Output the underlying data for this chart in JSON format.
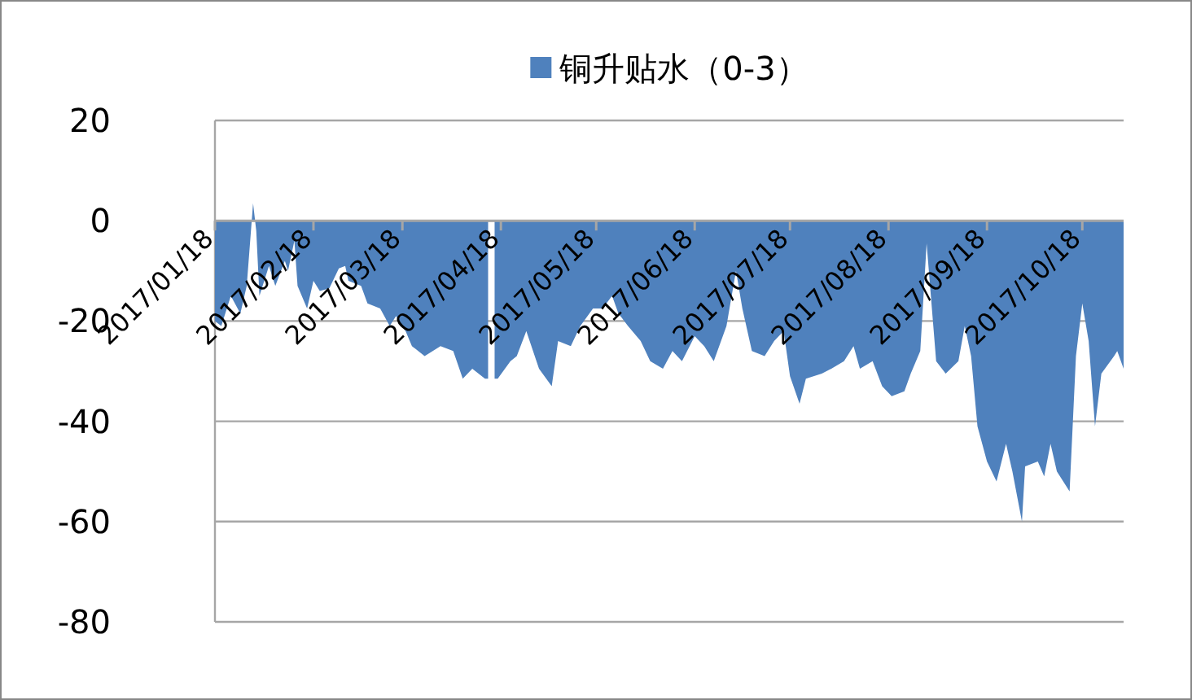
{
  "chart_data": {
    "type": "area",
    "legend": "top",
    "grid": "y",
    "xlim": [
      "2017-01-18",
      "2017-10-31"
    ],
    "xticks": [
      {
        "value": "2017-01-18",
        "label": "2017/01/18"
      },
      {
        "value": "2017-02-18",
        "label": "2017/02/18"
      },
      {
        "value": "2017-03-18",
        "label": "2017/03/18"
      },
      {
        "value": "2017-04-18",
        "label": "2017/04/18"
      },
      {
        "value": "2017-05-18",
        "label": "2017/05/18"
      },
      {
        "value": "2017-06-18",
        "label": "2017/06/18"
      },
      {
        "value": "2017-07-18",
        "label": "2017/07/18"
      },
      {
        "value": "2017-08-18",
        "label": "2017/08/18"
      },
      {
        "value": "2017-09-18",
        "label": "2017/09/18"
      },
      {
        "value": "2017-10-18",
        "label": "2017/10/18"
      }
    ],
    "ylim": [
      -80,
      20
    ],
    "yticks": [
      -80,
      -60,
      -40,
      -20,
      0,
      20
    ],
    "x": [
      "2017-01-18",
      "2017-01-20",
      "2017-01-23",
      "2017-01-26",
      "2017-01-28",
      "2017-01-30",
      "2017-01-31",
      "2017-02-01",
      "2017-02-04",
      "2017-02-06",
      "2017-02-09",
      "2017-02-10",
      "2017-02-12",
      "2017-02-13",
      "2017-02-16",
      "2017-02-18",
      "2017-02-20",
      "2017-02-23",
      "2017-02-26",
      "2017-02-28",
      "2017-03-01",
      "2017-03-05",
      "2017-03-07",
      "2017-03-11",
      "2017-03-14",
      "2017-03-16",
      "2017-03-19",
      "2017-03-21",
      "2017-03-25",
      "2017-03-30",
      "2017-04-03",
      "2017-04-06",
      "2017-04-09",
      "2017-04-13",
      "2017-04-15",
      "2017-04-17",
      "2017-04-21",
      "2017-04-23",
      "2017-04-26",
      "2017-04-30",
      "2017-05-04",
      "2017-05-06",
      "2017-05-10",
      "2017-05-13",
      "2017-05-17",
      "2017-05-20",
      "2017-05-23",
      "2017-05-25",
      "2017-05-28",
      "2017-06-01",
      "2017-06-04",
      "2017-06-08",
      "2017-06-11",
      "2017-06-14",
      "2017-06-18",
      "2017-06-21",
      "2017-06-24",
      "2017-06-28",
      "2017-07-01",
      "2017-07-03",
      "2017-07-06",
      "2017-07-10",
      "2017-07-13",
      "2017-07-16",
      "2017-07-18",
      "2017-07-21",
      "2017-07-23",
      "2017-07-28",
      "2017-07-31",
      "2017-08-04",
      "2017-08-07",
      "2017-08-09",
      "2017-08-13",
      "2017-08-16",
      "2017-08-19",
      "2017-08-23",
      "2017-08-25",
      "2017-08-28",
      "2017-08-30",
      "2017-09-02",
      "2017-09-05",
      "2017-09-09",
      "2017-09-11",
      "2017-09-13",
      "2017-09-15",
      "2017-09-18",
      "2017-09-21",
      "2017-09-24",
      "2017-09-26",
      "2017-09-29",
      "2017-09-30",
      "2017-10-04",
      "2017-10-06",
      "2017-10-08",
      "2017-10-10",
      "2017-10-14",
      "2017-10-16",
      "2017-10-18",
      "2017-10-20",
      "2017-10-22",
      "2017-10-24",
      "2017-10-28",
      "2017-10-29",
      "2017-10-31"
    ],
    "series": [
      {
        "name": "铜升贴水（0-3）",
        "color": "#4f81bd",
        "values": [
          -20,
          -21,
          -15,
          -18.5,
          -13,
          3.5,
          -2,
          -15,
          -9,
          -13,
          -8,
          -10,
          -4,
          -13,
          -17.5,
          -12,
          -14,
          -13.5,
          -9.5,
          -9,
          -12,
          -13,
          -16.5,
          -17.5,
          -21,
          -19,
          -22,
          -25,
          -27,
          -25,
          -26,
          -31.5,
          -29.5,
          -31.5,
          null,
          -31.5,
          -28,
          -27,
          -22,
          -29.5,
          -33,
          -24,
          -25,
          -21,
          -17.5,
          -17.5,
          -15,
          -18.5,
          -21,
          -24,
          -28,
          -29.5,
          -26,
          -28,
          -23,
          -25,
          -28,
          -21,
          -10,
          -17.5,
          -26,
          -27,
          -24,
          -22,
          -31,
          -36.5,
          -31.5,
          -30.5,
          -29.5,
          -28,
          -25,
          -29.5,
          -28,
          -33,
          -35,
          -34,
          -30.5,
          -26,
          -4.5,
          -28,
          -30.5,
          -28,
          -21,
          -27,
          -41,
          -48,
          -52,
          -44.5,
          -50,
          -60,
          -49,
          -48,
          -51,
          -44.5,
          -50,
          -54,
          -27,
          -16.5,
          -24,
          -41,
          -30.5,
          -27,
          -26,
          -29.5
        ]
      }
    ]
  }
}
